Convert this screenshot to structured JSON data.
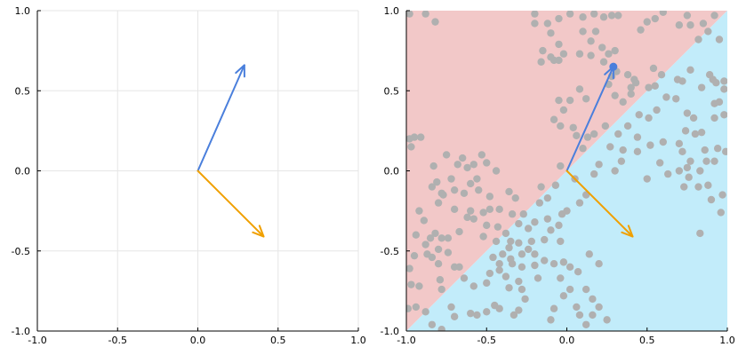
{
  "chart_data": [
    {
      "type": "line",
      "title": "",
      "xlabel": "",
      "ylabel": "",
      "xlim": [
        -1.0,
        1.0
      ],
      "ylim": [
        -1.0,
        1.0
      ],
      "grid": true,
      "x_ticks": [
        "-1.0",
        "-0.5",
        "0.0",
        "0.5",
        "1.0"
      ],
      "y_ticks": [
        "-1.0",
        "-0.5",
        "0.0",
        "0.5",
        "1.0"
      ],
      "vectors": [
        {
          "color": "#4a7fdc",
          "x0": 0,
          "y0": 0,
          "x1": 0.29,
          "y1": 0.66
        },
        {
          "color": "#f0a000",
          "x0": 0,
          "y0": 0,
          "x1": 0.41,
          "y1": -0.41
        }
      ]
    },
    {
      "type": "scatter",
      "title": "",
      "xlabel": "",
      "ylabel": "",
      "xlim": [
        -1.0,
        1.0
      ],
      "ylim": [
        -1.0,
        1.0
      ],
      "grid": false,
      "x_ticks": [
        "-1.0",
        "-0.5",
        "0.0",
        "0.5",
        "1.0"
      ],
      "y_ticks": [
        "-1.0",
        "-0.5",
        "0.0",
        "0.5",
        "1.0"
      ],
      "regions": {
        "upper_color": "#f2c8c8",
        "lower_color": "#c2ecfa",
        "boundary_slope": 1.0,
        "boundary_intercept": 0.0
      },
      "point_color": "#b0b0b0",
      "highlight_point": {
        "x": 0.29,
        "y": 0.65,
        "color": "#4a7fdc"
      },
      "vectors": [
        {
          "color": "#4a7fdc",
          "x0": 0,
          "y0": 0,
          "x1": 0.29,
          "y1": 0.65
        },
        {
          "color": "#f0a000",
          "x0": 0,
          "y0": 0,
          "x1": 0.41,
          "y1": -0.41
        }
      ],
      "points": [
        [
          -0.98,
          0.2
        ],
        [
          -0.95,
          0.21
        ],
        [
          -0.91,
          0.21
        ],
        [
          -0.97,
          0.15
        ],
        [
          -0.92,
          -0.25
        ],
        [
          -0.89,
          -0.31
        ],
        [
          -0.94,
          -0.4
        ],
        [
          -0.85,
          -0.42
        ],
        [
          -0.88,
          -0.46
        ],
        [
          -0.87,
          -0.52
        ],
        [
          -0.95,
          -0.53
        ],
        [
          -0.98,
          -0.61
        ],
        [
          -0.84,
          -0.54
        ],
        [
          -0.8,
          -0.58
        ],
        [
          -0.79,
          -0.68
        ],
        [
          -0.92,
          -0.72
        ],
        [
          -0.97,
          -0.71
        ],
        [
          -0.94,
          -0.85
        ],
        [
          -0.99,
          -0.86
        ],
        [
          -0.88,
          -0.88
        ],
        [
          -0.84,
          -0.96
        ],
        [
          -0.78,
          -0.99
        ],
        [
          -0.7,
          -0.91
        ],
        [
          -0.72,
          -0.85
        ],
        [
          -0.6,
          -0.89
        ],
        [
          -0.78,
          -0.74
        ],
        [
          -0.67,
          -0.6
        ],
        [
          -0.7,
          -0.6
        ],
        [
          -0.74,
          -0.51
        ],
        [
          -0.8,
          -0.49
        ],
        [
          -0.78,
          -0.42
        ],
        [
          -0.82,
          -0.39
        ],
        [
          -0.74,
          -0.42
        ],
        [
          -0.67,
          -0.38
        ],
        [
          -0.7,
          -0.24
        ],
        [
          -0.6,
          -0.25
        ],
        [
          -0.62,
          -0.29
        ],
        [
          -0.52,
          -0.26
        ],
        [
          -0.48,
          -0.24
        ],
        [
          -0.42,
          -0.24
        ],
        [
          -0.58,
          -0.3
        ],
        [
          -0.5,
          -0.34
        ],
        [
          -0.43,
          -0.35
        ],
        [
          -0.52,
          -0.41
        ],
        [
          -0.44,
          -0.44
        ],
        [
          -0.38,
          -0.39
        ],
        [
          -0.36,
          -0.48
        ],
        [
          -0.4,
          -0.52
        ],
        [
          -0.46,
          -0.54
        ],
        [
          -0.42,
          -0.58
        ],
        [
          -0.34,
          -0.58
        ],
        [
          -0.35,
          -0.44
        ],
        [
          -0.3,
          -0.45
        ],
        [
          -0.28,
          -0.52
        ],
        [
          -0.22,
          -0.44
        ],
        [
          -0.24,
          -0.36
        ],
        [
          -0.2,
          -0.32
        ],
        [
          -0.3,
          -0.33
        ],
        [
          -0.34,
          -0.27
        ],
        [
          -0.48,
          -0.16
        ],
        [
          -0.55,
          -0.12
        ],
        [
          -0.6,
          -0.08
        ],
        [
          -0.7,
          -0.12
        ],
        [
          -0.64,
          -0.14
        ],
        [
          -0.77,
          -0.15
        ],
        [
          -0.8,
          -0.2
        ],
        [
          -0.84,
          -0.1
        ],
        [
          -0.81,
          -0.07
        ],
        [
          -0.78,
          -0.14
        ],
        [
          -0.72,
          -0.05
        ],
        [
          -0.68,
          0.04
        ],
        [
          -0.62,
          0.02
        ],
        [
          -0.58,
          0.04
        ],
        [
          -0.56,
          -0.05
        ],
        [
          -0.5,
          0.05
        ],
        [
          -0.44,
          0.0
        ],
        [
          -0.36,
          -0.13
        ],
        [
          -0.32,
          -0.17
        ],
        [
          -0.27,
          -0.27
        ],
        [
          -0.17,
          -0.2
        ],
        [
          -0.12,
          -0.17
        ],
        [
          -0.07,
          -0.09
        ],
        [
          -0.16,
          -0.1
        ],
        [
          -0.04,
          0.03
        ],
        [
          -0.75,
          0.1
        ],
        [
          -0.83,
          0.03
        ],
        [
          -0.53,
          0.1
        ],
        [
          -0.65,
          0.08
        ],
        [
          -0.98,
          0.98
        ],
        [
          -0.88,
          0.98
        ],
        [
          -0.82,
          0.93
        ],
        [
          -0.2,
          0.98
        ],
        [
          -0.2,
          0.92
        ],
        [
          -0.1,
          0.86
        ],
        [
          -0.05,
          0.79
        ],
        [
          -0.02,
          0.73
        ],
        [
          -0.1,
          0.71
        ],
        [
          -0.15,
          0.75
        ],
        [
          -0.08,
          0.69
        ],
        [
          -0.05,
          0.69
        ],
        [
          -0.16,
          0.68
        ],
        [
          -0.12,
          0.92
        ],
        [
          -0.05,
          0.95
        ],
        [
          0.02,
          0.98
        ],
        [
          0.1,
          0.96
        ],
        [
          0.1,
          0.87
        ],
        [
          0.18,
          0.87
        ],
        [
          0.17,
          0.98
        ],
        [
          0.23,
          0.96
        ],
        [
          0.28,
          0.97
        ],
        [
          0.08,
          0.73
        ],
        [
          0.15,
          0.72
        ],
        [
          0.22,
          0.77
        ],
        [
          0.26,
          0.73
        ],
        [
          0.3,
          0.75
        ],
        [
          0.26,
          0.54
        ],
        [
          0.3,
          0.47
        ],
        [
          0.35,
          0.43
        ],
        [
          0.4,
          0.48
        ],
        [
          0.43,
          0.55
        ],
        [
          0.38,
          0.6
        ],
        [
          0.28,
          0.59
        ],
        [
          0.31,
          0.62
        ],
        [
          -0.05,
          0.44
        ],
        [
          -0.02,
          0.38
        ],
        [
          -0.08,
          0.32
        ],
        [
          -0.04,
          0.28
        ],
        [
          0.04,
          0.27
        ],
        [
          0.02,
          0.44
        ],
        [
          0.08,
          0.51
        ],
        [
          0.12,
          0.45
        ],
        [
          0.06,
          0.22
        ],
        [
          0.13,
          0.21
        ],
        [
          0.17,
          0.23
        ],
        [
          0.24,
          0.28
        ],
        [
          0.27,
          0.15
        ],
        [
          0.35,
          0.13
        ],
        [
          0.32,
          0.23
        ],
        [
          0.34,
          0.06
        ],
        [
          0.3,
          0.0
        ],
        [
          0.2,
          0.04
        ],
        [
          0.17,
          -0.02
        ],
        [
          0.1,
          0.14
        ],
        [
          0.44,
          0.12
        ],
        [
          0.52,
          0.16
        ],
        [
          0.6,
          0.18
        ],
        [
          0.7,
          0.17
        ],
        [
          0.72,
          0.12
        ],
        [
          0.7,
          0.0
        ],
        [
          0.63,
          -0.02
        ],
        [
          0.58,
          0.05
        ],
        [
          0.5,
          -0.05
        ],
        [
          0.44,
          0.21
        ],
        [
          0.38,
          0.28
        ],
        [
          0.45,
          0.35
        ],
        [
          0.51,
          0.33
        ],
        [
          0.56,
          0.38
        ],
        [
          0.62,
          0.46
        ],
        [
          0.68,
          0.45
        ],
        [
          0.75,
          0.36
        ],
        [
          0.79,
          0.33
        ],
        [
          0.74,
          0.25
        ],
        [
          0.8,
          0.23
        ],
        [
          0.84,
          0.24
        ],
        [
          0.86,
          0.13
        ],
        [
          0.94,
          0.14
        ],
        [
          0.99,
          0.12
        ],
        [
          0.92,
          0.06
        ],
        [
          0.87,
          0.06
        ],
        [
          0.83,
          0.0
        ],
        [
          0.77,
          0.06
        ],
        [
          0.75,
          0.02
        ],
        [
          0.76,
          -0.04
        ],
        [
          0.73,
          -0.1
        ],
        [
          0.82,
          -0.1
        ],
        [
          0.88,
          -0.09
        ],
        [
          0.97,
          -0.15
        ],
        [
          0.9,
          -0.18
        ],
        [
          0.96,
          -0.26
        ],
        [
          0.83,
          -0.39
        ],
        [
          0.98,
          0.51
        ],
        [
          0.91,
          0.57
        ],
        [
          0.89,
          0.6
        ],
        [
          0.93,
          0.55
        ],
        [
          0.92,
          0.42
        ],
        [
          0.95,
          0.43
        ],
        [
          0.98,
          0.56
        ],
        [
          0.84,
          0.52
        ],
        [
          0.92,
          0.33
        ],
        [
          0.98,
          0.35
        ],
        [
          0.77,
          0.63
        ],
        [
          0.72,
          0.56
        ],
        [
          0.69,
          0.57
        ],
        [
          0.59,
          0.6
        ],
        [
          0.54,
          0.64
        ],
        [
          0.51,
          0.52
        ],
        [
          0.4,
          0.52
        ],
        [
          0.55,
          0.53
        ],
        [
          0.95,
          0.82
        ],
        [
          0.88,
          0.87
        ],
        [
          0.75,
          0.97
        ],
        [
          0.7,
          0.91
        ],
        [
          0.55,
          0.95
        ],
        [
          0.5,
          0.93
        ],
        [
          0.6,
          0.99
        ],
        [
          0.77,
          0.91
        ],
        [
          0.85,
          0.92
        ],
        [
          0.92,
          0.97
        ],
        [
          0.82,
          0.82
        ],
        [
          0.42,
          0.57
        ],
        [
          0.46,
          0.88
        ],
        [
          0.32,
          0.97
        ],
        [
          0.15,
          0.81
        ],
        [
          0.23,
          0.68
        ],
        [
          0.05,
          -0.05
        ],
        [
          0.12,
          -0.15
        ],
        [
          0.08,
          -0.2
        ],
        [
          0.0,
          -0.25
        ],
        [
          -0.03,
          -0.27
        ],
        [
          -0.05,
          -0.34
        ],
        [
          -0.12,
          -0.3
        ],
        [
          -0.1,
          -0.37
        ],
        [
          -0.04,
          -0.44
        ],
        [
          -0.14,
          -0.43
        ],
        [
          -0.24,
          -0.49
        ],
        [
          -0.2,
          -0.52
        ],
        [
          -0.2,
          -0.59
        ],
        [
          -0.18,
          -0.67
        ],
        [
          -0.28,
          -0.74
        ],
        [
          -0.26,
          -0.8
        ],
        [
          -0.3,
          -0.87
        ],
        [
          -0.33,
          -0.9
        ],
        [
          -0.42,
          -0.86
        ],
        [
          -0.45,
          -0.84
        ],
        [
          -0.5,
          -0.88
        ],
        [
          -0.56,
          -0.9
        ],
        [
          -0.5,
          -0.7
        ],
        [
          -0.58,
          -0.72
        ],
        [
          -0.64,
          -0.67
        ],
        [
          -0.48,
          -0.64
        ],
        [
          -0.42,
          -0.62
        ],
        [
          -0.38,
          -0.66
        ],
        [
          -0.36,
          -0.73
        ],
        [
          -0.3,
          -0.69
        ],
        [
          -0.14,
          -0.56
        ],
        [
          -0.08,
          -0.58
        ],
        [
          -0.02,
          -0.57
        ],
        [
          -0.04,
          -0.67
        ],
        [
          0.02,
          -0.6
        ],
        [
          0.07,
          -0.63
        ],
        [
          0.02,
          -0.74
        ],
        [
          -0.02,
          -0.78
        ],
        [
          0.06,
          -0.85
        ],
        [
          0.08,
          -0.9
        ],
        [
          0.12,
          -0.96
        ],
        [
          0.16,
          -0.9
        ],
        [
          0.2,
          -0.85
        ],
        [
          0.16,
          -0.8
        ],
        [
          0.12,
          -0.74
        ],
        [
          -0.08,
          -0.86
        ],
        [
          -0.1,
          -0.93
        ],
        [
          0.25,
          -0.93
        ],
        [
          -0.35,
          -0.55
        ],
        [
          -0.28,
          -0.6
        ],
        [
          0.14,
          -0.52
        ],
        [
          0.2,
          -0.58
        ]
      ]
    }
  ]
}
